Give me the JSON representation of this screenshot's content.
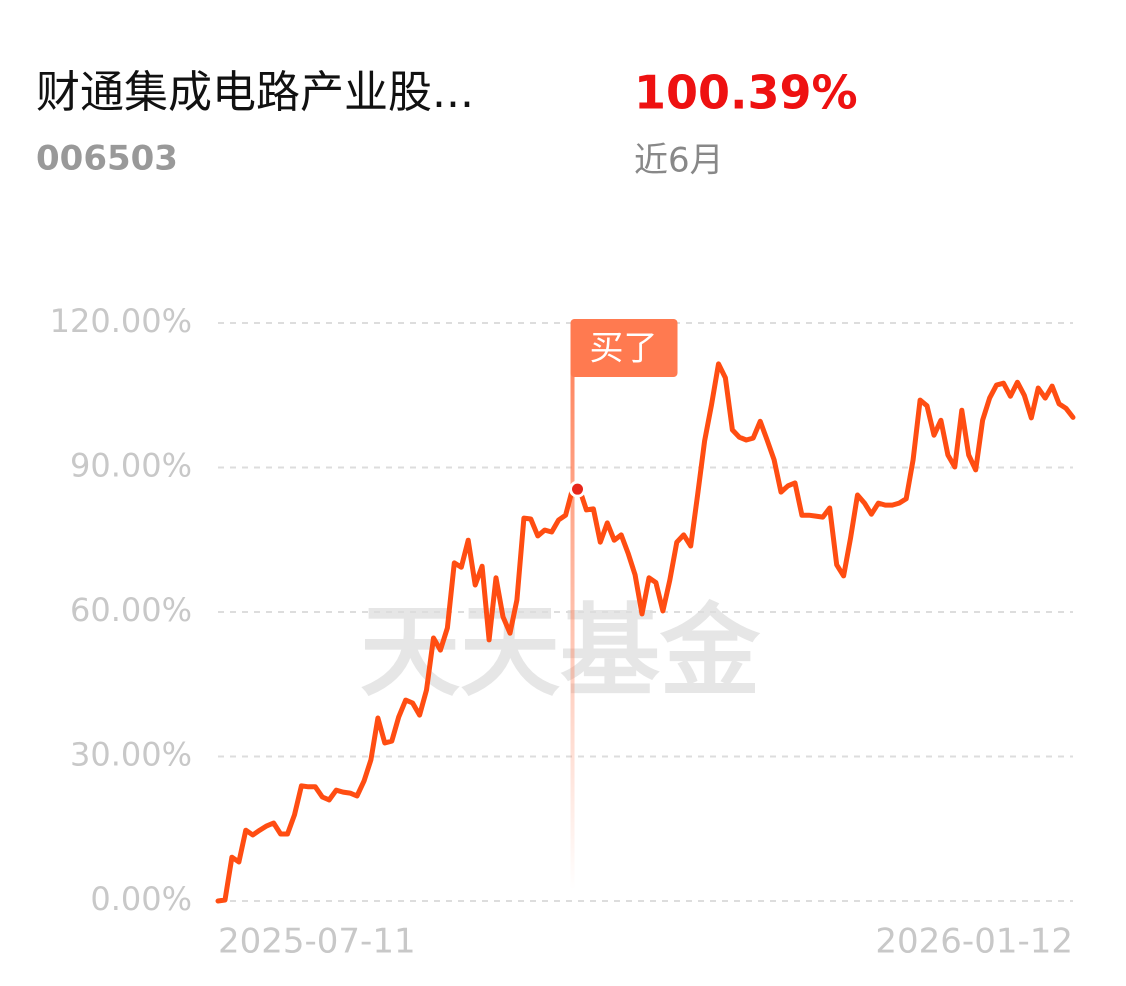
{
  "header": {
    "fund_name": "财通集成电路产业股...",
    "fund_code": "006503",
    "return_value": "100.39%",
    "period": "近6月"
  },
  "chart_data": {
    "type": "line",
    "watermark": "天天基金",
    "categories": [
      "2025-07-11",
      null,
      null,
      null,
      null,
      null,
      null,
      null,
      null,
      null,
      null,
      null,
      null,
      null,
      null,
      null,
      null,
      null,
      null,
      null,
      null,
      null,
      null,
      null,
      null,
      null,
      null,
      null,
      null,
      null,
      null,
      null,
      null,
      null,
      null,
      null,
      null,
      null,
      null,
      null,
      null,
      null,
      null,
      null,
      null,
      null,
      null,
      null,
      null,
      null,
      null,
      null,
      null,
      null,
      null,
      null,
      null,
      null,
      null,
      null,
      null,
      null,
      null,
      null,
      null,
      null,
      null,
      null,
      null,
      null,
      null,
      null,
      null,
      null,
      null,
      null,
      null,
      null,
      null,
      null,
      null,
      null,
      null,
      null,
      null,
      null,
      null,
      null,
      null,
      null,
      null,
      null,
      null,
      null,
      null,
      null,
      null,
      null,
      null,
      null,
      null,
      null,
      null,
      null,
      null,
      null,
      null,
      null,
      null,
      null,
      null,
      null,
      null,
      null,
      null,
      null,
      null,
      null,
      null,
      null,
      null,
      null,
      null,
      "2026-01-12"
    ],
    "series": [
      {
        "color": "#ff4d12",
        "values": [
          0,
          0.2,
          9.1,
          8.1,
          14.7,
          13.7,
          14.7,
          15.6,
          16.2,
          13.9,
          13.9,
          17.9,
          23.9,
          23.7,
          23.7,
          21.6,
          21.0,
          23.0,
          22.6,
          22.4,
          21.8,
          24.9,
          29.3,
          38.0,
          32.8,
          33.2,
          38.2,
          41.7,
          41.1,
          38.6,
          43.8,
          54.6,
          52.1,
          56.7,
          70.2,
          69.3,
          74.9,
          65.6,
          69.5,
          54.2,
          67.1,
          59.0,
          55.6,
          62.5,
          79.5,
          79.3,
          75.8,
          77.0,
          76.6,
          79.1,
          80.1,
          85.5,
          85.5,
          81.2,
          81.4,
          74.5,
          78.5,
          74.9,
          76.0,
          72.2,
          67.7,
          59.6,
          67.1,
          66.1,
          60.2,
          66.6,
          74.5,
          76.0,
          73.7,
          84.3,
          95.5,
          103.0,
          111.5,
          108.6,
          97.8,
          96.3,
          95.7,
          96.1,
          99.6,
          95.7,
          91.6,
          84.9,
          86.2,
          86.8,
          80.1,
          80.1,
          79.9,
          79.7,
          81.6,
          69.8,
          67.5,
          75.4,
          84.3,
          82.6,
          80.3,
          82.6,
          82.2,
          82.2,
          82.6,
          83.5,
          91.6,
          104.0,
          102.8,
          96.7,
          99.8,
          92.6,
          90.1,
          101.9,
          92.6,
          89.5,
          99.8,
          104.4,
          107.1,
          107.5,
          104.8,
          107.7,
          105.0,
          100.3,
          106.5,
          104.4,
          106.9,
          103.2,
          102.3,
          100.4
        ]
      }
    ],
    "annotation": {
      "text": "买了",
      "index": 51,
      "color": "#ff7a50"
    },
    "ylim": [
      0,
      120
    ],
    "yticks": [
      {
        "value": 0,
        "label": "0.00%"
      },
      {
        "value": 30,
        "label": "30.00%"
      },
      {
        "value": 60,
        "label": "60.00%"
      },
      {
        "value": 90,
        "label": "90.00%"
      },
      {
        "value": 120,
        "label": "120.00%"
      }
    ],
    "grid": true
  }
}
